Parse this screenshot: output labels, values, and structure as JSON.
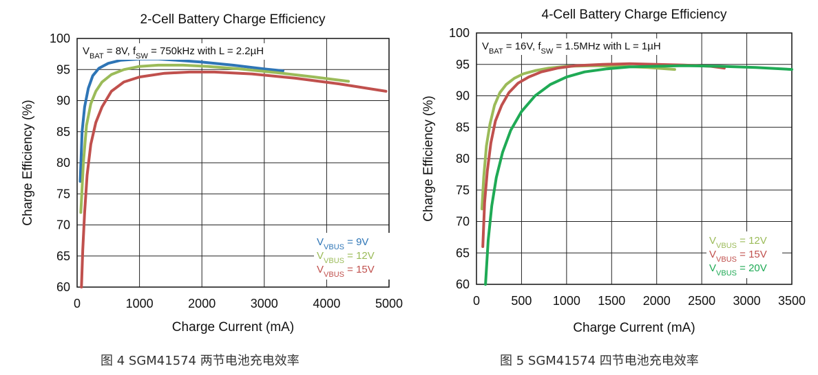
{
  "chart_data": [
    {
      "type": "line",
      "title": "2-Cell Battery Charge Efficiency",
      "condition": {
        "v": "V",
        "v_sub": "BAT",
        "mid": " = 8V, f",
        "f_sub": "SW",
        "rest": " = 750kHz with L = 2.2µH"
      },
      "xlabel": "Charge Current (mA)",
      "ylabel": "Charge Efficiency (%)",
      "xlim": [
        0,
        5000
      ],
      "ylim": [
        60,
        100
      ],
      "xticks": [
        "0",
        "1000",
        "2000",
        "3000",
        "4000",
        "5000"
      ],
      "yticks": [
        "60",
        "65",
        "70",
        "75",
        "80",
        "85",
        "90",
        "95",
        "100"
      ],
      "grid": true,
      "legend_position": "bottom-right",
      "series": [
        {
          "legend_v": "V",
          "legend_sub": "VBUS",
          "legend_val": " = 9V",
          "color": "#2e75b6",
          "x": [
            50,
            80,
            120,
            180,
            250,
            350,
            500,
            700,
            1000,
            1300,
            1600,
            2000,
            2500,
            3000,
            3300
          ],
          "y": [
            77,
            85,
            89,
            92,
            94,
            95.2,
            96,
            96.5,
            96.7,
            96.7,
            96.5,
            96.2,
            95.7,
            95.1,
            94.8
          ]
        },
        {
          "legend_v": "V",
          "legend_sub": "VBUS",
          "legend_val": " = 12V",
          "color": "#9bbb59",
          "x": [
            60,
            100,
            150,
            220,
            300,
            400,
            550,
            750,
            1000,
            1300,
            1700,
            2100,
            2600,
            3200,
            3800,
            4350
          ],
          "y": [
            72,
            80,
            86,
            89.5,
            91.5,
            93,
            94.2,
            95,
            95.5,
            95.7,
            95.7,
            95.5,
            95.1,
            94.5,
            93.8,
            93.1
          ]
        },
        {
          "legend_v": "V",
          "legend_sub": "VBUS",
          "legend_val": " = 15V",
          "color": "#c0504d",
          "x": [
            70,
            90,
            120,
            160,
            220,
            300,
            400,
            550,
            750,
            1000,
            1400,
            1800,
            2200,
            2800,
            3500,
            4200,
            4950
          ],
          "y": [
            60,
            66,
            72,
            78,
            83,
            86.5,
            89,
            91.5,
            93,
            93.8,
            94.4,
            94.6,
            94.6,
            94.3,
            93.6,
            92.7,
            91.5
          ]
        }
      ]
    },
    {
      "type": "line",
      "title": "4-Cell Battery Charge Efficiency",
      "condition": {
        "v": "V",
        "v_sub": "BAT",
        "mid": " = 16V, f",
        "f_sub": "SW",
        "rest": " = 1.5MHz with L = 1µH"
      },
      "xlabel": "Charge Current (mA)",
      "ylabel": "Charge Efficiency (%)",
      "xlim": [
        0,
        3500
      ],
      "ylim": [
        60,
        100
      ],
      "xticks": [
        "0",
        "500",
        "1000",
        "1500",
        "2000",
        "2500",
        "3000",
        "3500"
      ],
      "yticks": [
        "60",
        "65",
        "70",
        "75",
        "80",
        "85",
        "90",
        "95",
        "100"
      ],
      "grid": true,
      "legend_position": "bottom-right",
      "series": [
        {
          "legend_v": "V",
          "legend_sub": "VBUS",
          "legend_val": " = 12V",
          "color": "#9bbb59",
          "x": [
            60,
            80,
            110,
            150,
            200,
            260,
            330,
            420,
            520,
            650,
            800,
            1000,
            1300,
            1600,
            1900,
            2200
          ],
          "y": [
            72,
            77,
            82,
            85.5,
            88.5,
            90.5,
            91.8,
            92.8,
            93.5,
            94,
            94.4,
            94.7,
            94.8,
            94.7,
            94.5,
            94.2
          ]
        },
        {
          "legend_v": "V",
          "legend_sub": "VBUS",
          "legend_val": " = 15V",
          "color": "#c0504d",
          "x": [
            70,
            90,
            120,
            160,
            210,
            280,
            360,
            460,
            580,
            720,
            900,
            1100,
            1400,
            1700,
            2000,
            2300,
            2600,
            2750
          ],
          "y": [
            66,
            73,
            78,
            82.5,
            86,
            88.5,
            90.5,
            92,
            93,
            93.8,
            94.4,
            94.8,
            95,
            95.1,
            95,
            94.9,
            94.7,
            94.4
          ]
        },
        {
          "legend_v": "V",
          "legend_sub": "VBUS",
          "legend_val": " = 20V",
          "color": "#1faa55",
          "x": [
            100,
            130,
            170,
            220,
            290,
            380,
            500,
            650,
            820,
            1000,
            1200,
            1450,
            1700,
            2000,
            2300,
            2700,
            3100,
            3500
          ],
          "y": [
            60,
            67,
            72.5,
            77,
            81,
            84.5,
            87.5,
            90,
            91.8,
            93,
            93.8,
            94.3,
            94.6,
            94.7,
            94.8,
            94.7,
            94.5,
            94.2
          ]
        }
      ]
    }
  ],
  "captions": [
    "图 4 SGM41574 两节电池充电效率",
    "图 5 SGM41574 四节电池充电效率"
  ]
}
